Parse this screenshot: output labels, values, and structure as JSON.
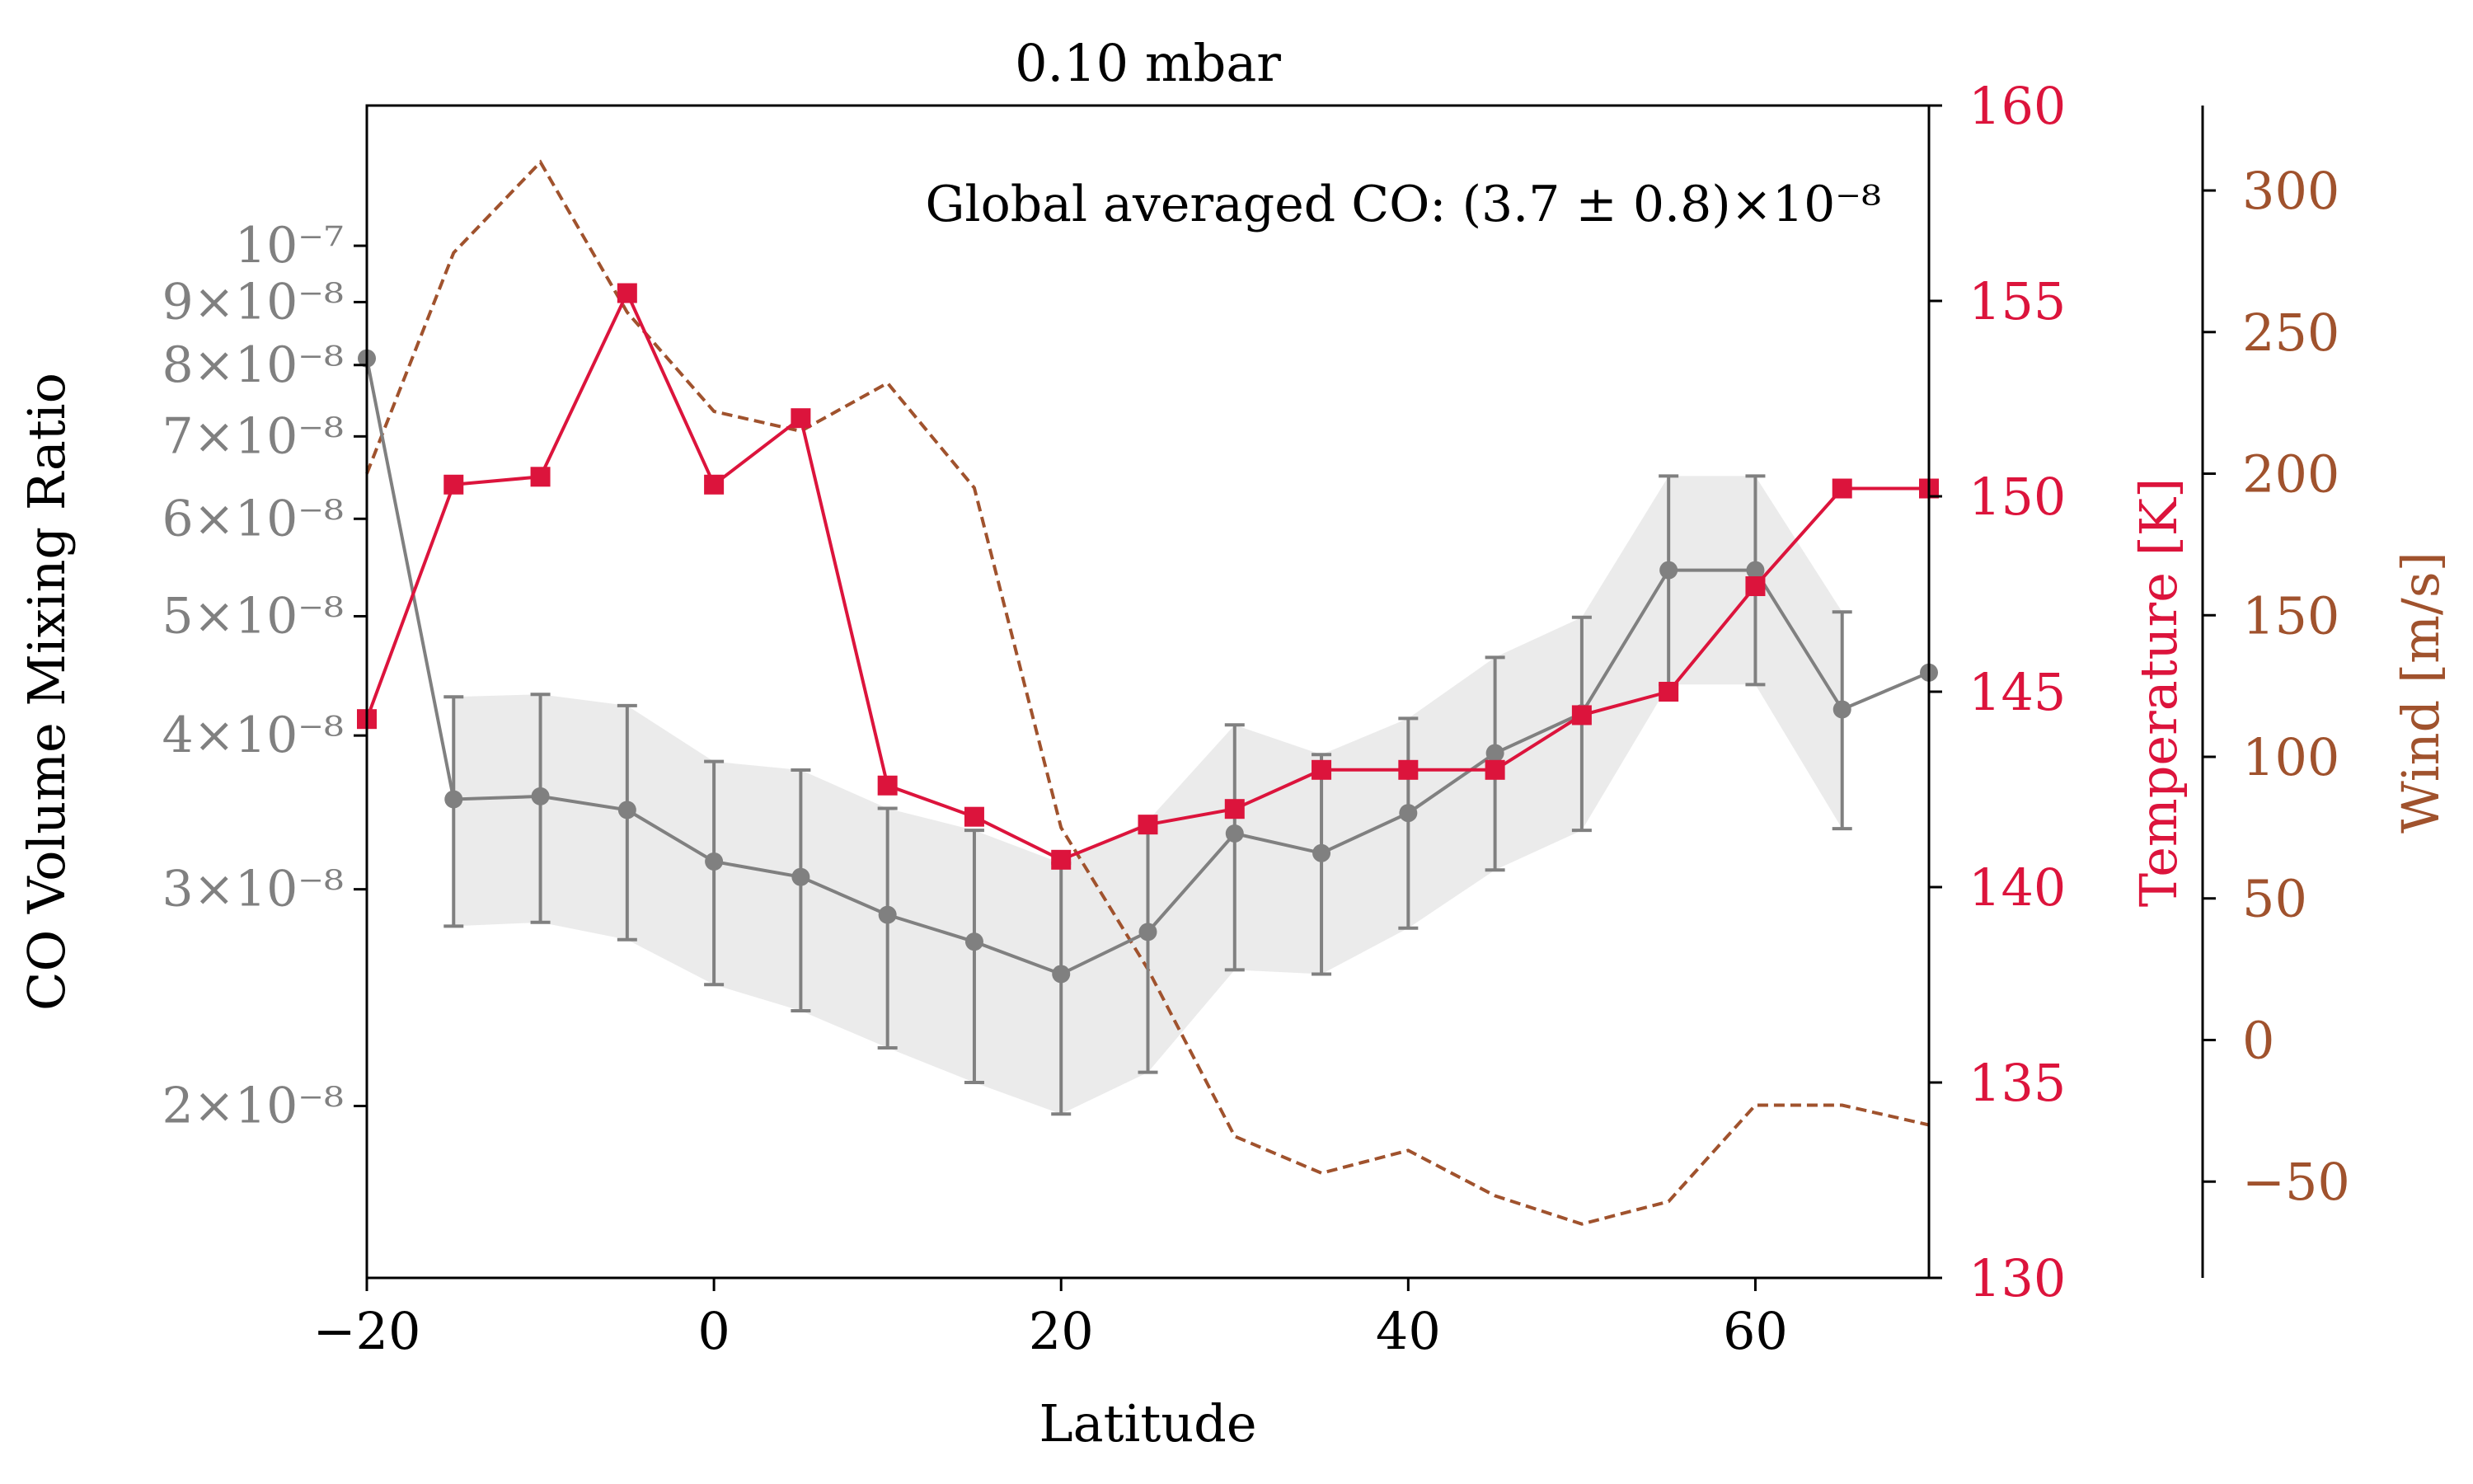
{
  "chart_data": {
    "type": "line",
    "title": "0.10 mbar",
    "annotation": "Global averaged CO: (3.7 ± 0.8)×10⁻⁸",
    "xlabel": "Latitude",
    "xlim": [
      -20,
      70
    ],
    "xticks": [
      -20,
      0,
      20,
      40,
      60
    ],
    "xtick_labels": [
      "−20",
      "0",
      "20",
      "40",
      "60"
    ],
    "x": [
      -20,
      -15,
      -10,
      -5,
      0,
      5,
      10,
      15,
      20,
      25,
      30,
      35,
      40,
      45,
      50,
      55,
      60,
      65,
      70
    ],
    "axes": {
      "co": {
        "label": "CO Volume Mixing Ratio",
        "scale": "log",
        "ylim": [
          1.45e-08,
          1.3e-07
        ],
        "color": "#808080",
        "ticks": [
          2e-08,
          3e-08,
          4e-08,
          5e-08,
          6e-08,
          7e-08,
          8e-08,
          9e-08,
          1e-07
        ],
        "tick_labels": [
          "2×10⁻⁸",
          "3×10⁻⁸",
          "4×10⁻⁸",
          "5×10⁻⁸",
          "6×10⁻⁸",
          "7×10⁻⁸",
          "8×10⁻⁸",
          "9×10⁻⁸",
          "10⁻⁷"
        ]
      },
      "temperature": {
        "label": "Temperature [K]",
        "scale": "linear",
        "ylim": [
          130,
          160
        ],
        "color": "#dc143c",
        "ticks": [
          130,
          135,
          140,
          145,
          150,
          155,
          160
        ],
        "tick_labels": [
          "130",
          "135",
          "140",
          "145",
          "150",
          "155",
          "160"
        ]
      },
      "wind": {
        "label": "Wind [m/s]",
        "scale": "linear",
        "ylim": [
          -84,
          330
        ],
        "color": "#a0522d",
        "ticks": [
          -50,
          0,
          50,
          100,
          150,
          200,
          250,
          300
        ],
        "tick_labels": [
          "−50",
          "0",
          "50",
          "100",
          "150",
          "200",
          "250",
          "300"
        ]
      }
    },
    "series": [
      {
        "axis": "co",
        "style": "line-circle-errorbar",
        "values": [
          8.1e-08,
          3.55e-08,
          3.57e-08,
          3.48e-08,
          3.16e-08,
          3.07e-08,
          2.86e-08,
          2.72e-08,
          2.56e-08,
          2.77e-08,
          3.33e-08,
          3.21e-08,
          3.46e-08,
          3.87e-08,
          4.17e-08,
          5.45e-08,
          5.45e-08,
          4.2e-08,
          4.5e-08
        ],
        "errors": [
          null,
          7.5e-09,
          7.5e-09,
          7.5e-09,
          6.5e-09,
          6.8e-09,
          6.3e-09,
          6.3e-09,
          5.9e-09,
          6.4e-09,
          7.5e-09,
          6.5e-09,
          6.7e-09,
          7.6e-09,
          8.2e-09,
          1.05e-08,
          1.05e-08,
          8.4e-09,
          null
        ]
      },
      {
        "axis": "temperature",
        "style": "line-square",
        "values": [
          144.3,
          150.3,
          150.5,
          155.2,
          150.3,
          152.0,
          142.6,
          141.8,
          140.7,
          141.6,
          142.0,
          143.0,
          143.0,
          143.0,
          144.4,
          145.0,
          147.7,
          150.2,
          150.2
        ]
      },
      {
        "axis": "wind",
        "style": "dashed",
        "values": [
          200,
          278,
          310,
          257,
          222,
          215,
          232,
          195,
          75,
          25,
          -34,
          -47,
          -39,
          -55,
          -65,
          -57,
          -23,
          -23,
          -30
        ]
      }
    ]
  }
}
